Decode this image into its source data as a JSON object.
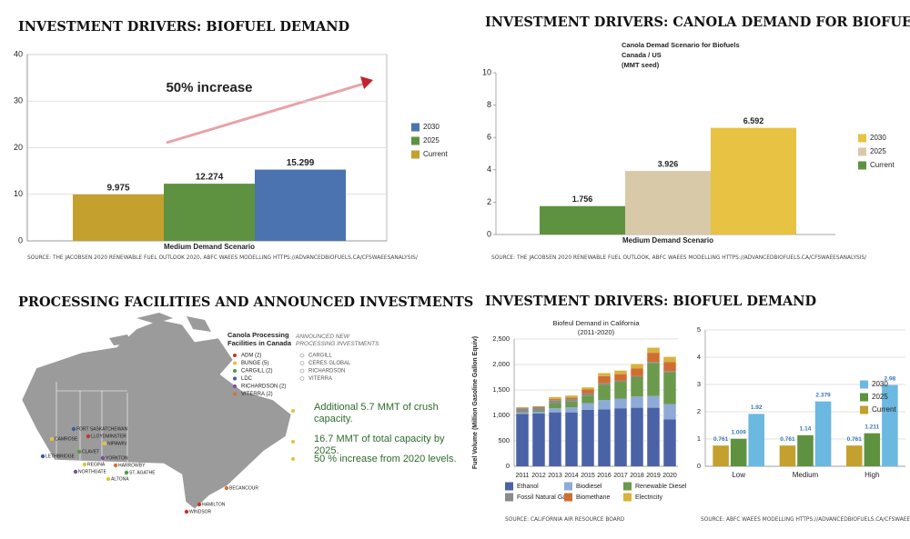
{
  "chart_data": [
    {
      "type": "bar",
      "title": "INVESTMENT DRIVERS: BIOFUEL DEMAND",
      "annotation": "50% increase",
      "categories": [
        "Medium Demand Scenario"
      ],
      "series": [
        {
          "name": "2030",
          "color": "#4a73b0",
          "values": [
            15.299
          ]
        },
        {
          "name": "2025",
          "color": "#5e9240",
          "values": [
            12.274
          ]
        },
        {
          "name": "Current",
          "color": "#c4a02e",
          "values": [
            9.975
          ]
        }
      ],
      "ylim": [
        0,
        40
      ],
      "yticks": [
        0,
        10,
        20,
        30,
        40
      ],
      "grid": true,
      "legend": "right",
      "source": "SOURCE: THE JACOBSEN 2020 RENEWABLE FUEL OUTLOOK 2020, ABFC WAEES MODELLING HTTPS://ADVANCEDBIOFUELS.CA/CFSWAEESANALYSIS/"
    },
    {
      "type": "bar",
      "title": "INVESTMENT DRIVERS: CANOLA DEMAND FOR BIOFUELS",
      "subtitle": [
        "Canola Demad Scenario for Biofuels",
        "Canada / US",
        "(MMT seed)"
      ],
      "categories": [
        "Medium Demand Scenario"
      ],
      "series": [
        {
          "name": "2030",
          "color": "#e8c242",
          "values": [
            6.592
          ]
        },
        {
          "name": "2025",
          "color": "#d8c9a8",
          "values": [
            3.926
          ]
        },
        {
          "name": "Current",
          "color": "#5e9240",
          "values": [
            1.756
          ]
        }
      ],
      "ylim": [
        0,
        10
      ],
      "yticks": [
        0,
        2,
        4,
        6,
        8,
        10
      ],
      "grid": false,
      "legend": "right",
      "source": "SOURCE: THE JACOBSEN 2020 RENEWABLE FUEL OUTLOOK, ABFC WAEES MODELLING HTTPS://ADVANCEDBIOFUELS.CA/CFSWAEESANALYSIS/"
    },
    {
      "type": "stacked_bar",
      "title": "INVESTMENT DRIVERS: BIOFUEL DEMAND",
      "subtitle": [
        "Biofeul Demand in California",
        "(2011-2020)"
      ],
      "ylabel": "Fuel Volume (Million Gasoline Gallon Equiv)",
      "categories": [
        "2011",
        "2012",
        "2013",
        "2014",
        "2015",
        "2016",
        "2017",
        "2018",
        "2019",
        "2020"
      ],
      "series": [
        {
          "name": "Ethanol",
          "color": "#4a62a6",
          "values": [
            1030,
            1040,
            1060,
            1060,
            1110,
            1120,
            1140,
            1150,
            1150,
            920
          ]
        },
        {
          "name": "Biodiesel",
          "color": "#8eaad6",
          "values": [
            20,
            30,
            80,
            100,
            130,
            180,
            190,
            220,
            230,
            300
          ]
        },
        {
          "name": "Renewable Diesel",
          "color": "#6b9a4c",
          "values": [
            10,
            20,
            100,
            110,
            150,
            300,
            330,
            380,
            650,
            630
          ]
        },
        {
          "name": "Fossil Natural Gas",
          "color": "#8a8a8a",
          "values": [
            80,
            70,
            60,
            50,
            40,
            30,
            20,
            20,
            20,
            20
          ]
        },
        {
          "name": "Biomethane",
          "color": "#cf6e32",
          "values": [
            10,
            10,
            20,
            30,
            80,
            140,
            130,
            150,
            180,
            180
          ]
        },
        {
          "name": "Electricity",
          "color": "#d9b140",
          "values": [
            10,
            10,
            40,
            40,
            40,
            60,
            70,
            90,
            100,
            100
          ]
        }
      ],
      "ylim": [
        0,
        2500
      ],
      "yticks": [
        0,
        500,
        {
          "value": 1000,
          "label": "1,000"
        },
        {
          "value": 1500,
          "label": "1,500"
        },
        {
          "value": 2000,
          "label": "2,000"
        },
        {
          "value": 2500,
          "label": "2,500"
        }
      ],
      "grid": true,
      "legend": "bottom",
      "source": "SOURCE: CALIFORNIA AIR RESOURCE BOARD"
    },
    {
      "type": "bar",
      "categories": [
        "Low",
        "Medium",
        "High"
      ],
      "series": [
        {
          "name": "2030",
          "color": "#6bb8e0",
          "values": [
            1.92,
            2.379,
            2.98
          ]
        },
        {
          "name": "2025",
          "color": "#5e9240",
          "values": [
            1.009,
            1.14,
            1.211
          ]
        },
        {
          "name": "Current",
          "color": "#c4a02e",
          "values": [
            0.761,
            0.761,
            0.761
          ]
        }
      ],
      "ylim": [
        0,
        5
      ],
      "yticks": [
        0,
        1,
        2,
        3,
        4,
        5
      ],
      "grid": true,
      "legend": "right",
      "source": "SOURCE: ABFC WAEES MODELLING HTTPS://ADVANCEDBIOFUELS.CA/CFSWAEESANALYSIS/"
    }
  ],
  "map": {
    "title": "PROCESSING FACILITIES AND ANNOUNCED INVESTMENTS",
    "legend_title": "Canola Processing Facilities in Canada",
    "facilities": [
      {
        "name": "ADM (2)",
        "color": "#c0392b"
      },
      {
        "name": "BUNGE (5)",
        "color": "#e2c33a"
      },
      {
        "name": "CARGILL (2)",
        "color": "#4f9a3c"
      },
      {
        "name": "LDC",
        "color": "#3b5ca8"
      },
      {
        "name": "RICHARDSON (2)",
        "color": "#7c4fa0"
      },
      {
        "name": "VITERRA (2)",
        "color": "#d2752e"
      }
    ],
    "new_title": "ANNOUNCED NEW PROCESSING INVESTMENTS",
    "new_items": [
      "CARGILL",
      "CERES GLOBAL",
      "RICHARDSON",
      "VITERRA"
    ],
    "notes": [
      "Additional 5.7 MMT of crush capacity.",
      "16.7 MMT of total capacity by 2025.",
      "50 % increase from 2020 levels."
    ],
    "places": [
      "FORT SASKATCHEWAN",
      "CAMROSE",
      "LLOYDMINSTER",
      "NIPAWIN",
      "LETHBRIDGE",
      "CLAVET",
      "YORKTON",
      "REGINA",
      "HARROWBY",
      "NORTHGATE",
      "ST. AGATHE",
      "ALTONA",
      "BECANCOUR",
      "HAMILTON",
      "WINDSOR"
    ]
  }
}
